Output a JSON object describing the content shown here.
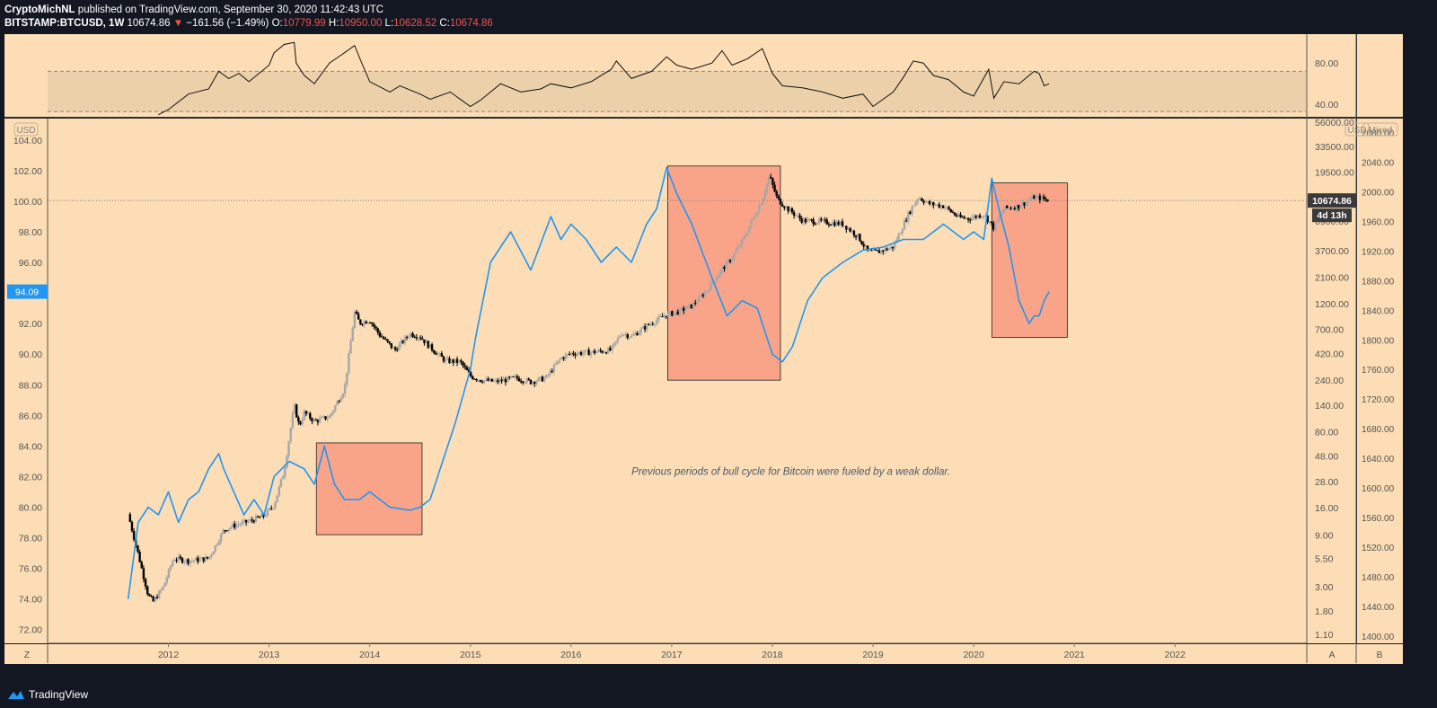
{
  "header": {
    "publisher": "CryptoMichNL",
    "published_text": "published on TradingView.com, September 30, 2020 11:42:43 UTC",
    "symbol": "BITSTAMP:BTCUSD, 1W",
    "price": "10674.86",
    "change_arrow": "▼",
    "change": "−161.56 (−1.49%)",
    "o_label": "O:",
    "o_value": "10779.99",
    "h_label": "H:",
    "h_value": "10950.00",
    "l_label": "L:",
    "l_value": "10628.52",
    "c_label": "C:",
    "c_value": "10674.86"
  },
  "colors": {
    "background": "#131722",
    "chart_bg": "#fcddb5",
    "rsi_band": "#ecd0aa",
    "dxy_line": "#2196f3",
    "highlight": "#f9a488",
    "candle_up": "#a7a7a7",
    "candle_down": "#000000"
  },
  "footer": {
    "brand": "TradingView"
  },
  "chart_data": [
    {
      "type": "line",
      "name": "rsi-pane",
      "y_ticks": [
        "80.00",
        "40.00"
      ],
      "y_tick_values": [
        80,
        40
      ],
      "ylim": [
        28,
        108
      ],
      "band": [
        33,
        72
      ],
      "x": [
        2011.9,
        2012.0,
        2012.2,
        2012.4,
        2012.5,
        2012.6,
        2012.7,
        2012.8,
        2013.0,
        2013.05,
        2013.15,
        2013.25,
        2013.27,
        2013.35,
        2013.45,
        2013.6,
        2013.75,
        2013.85,
        2013.9,
        2014.0,
        2014.2,
        2014.3,
        2014.5,
        2014.6,
        2014.8,
        2015.0,
        2015.1,
        2015.3,
        2015.5,
        2015.7,
        2015.8,
        2016.0,
        2016.2,
        2016.4,
        2016.45,
        2016.6,
        2016.8,
        2016.95,
        2017.05,
        2017.2,
        2017.4,
        2017.5,
        2017.6,
        2017.75,
        2017.9,
        2018.0,
        2018.1,
        2018.3,
        2018.5,
        2018.7,
        2018.9,
        2019.0,
        2019.2,
        2019.3,
        2019.4,
        2019.5,
        2019.6,
        2019.75,
        2019.9,
        2020.0,
        2020.15,
        2020.2,
        2020.3,
        2020.45,
        2020.6,
        2020.65,
        2020.7,
        2020.75
      ],
      "values": [
        30,
        35,
        50,
        55,
        72,
        65,
        70,
        62,
        78,
        90,
        98,
        100,
        80,
        68,
        60,
        80,
        90,
        97,
        85,
        62,
        52,
        58,
        50,
        45,
        52,
        38,
        44,
        60,
        52,
        55,
        60,
        56,
        62,
        74,
        82,
        65,
        72,
        86,
        78,
        74,
        80,
        92,
        78,
        84,
        94,
        70,
        58,
        56,
        52,
        46,
        50,
        38,
        52,
        66,
        82,
        80,
        68,
        64,
        52,
        48,
        74,
        46,
        62,
        60,
        72,
        70,
        58,
        60
      ]
    },
    {
      "type": "line",
      "name": "main-pane",
      "series": [
        {
          "key": "dxy",
          "axis": "left",
          "x": [
            2011.6,
            2011.65,
            2011.7,
            2011.8,
            2011.9,
            2012.0,
            2012.1,
            2012.2,
            2012.3,
            2012.4,
            2012.5,
            2012.55,
            2012.65,
            2012.75,
            2012.85,
            2012.95,
            2013.05,
            2013.2,
            2013.35,
            2013.45,
            2013.55,
            2013.65,
            2013.75,
            2013.9,
            2014.0,
            2014.2,
            2014.4,
            2014.5,
            2014.6,
            2014.7,
            2014.85,
            2015.0,
            2015.05,
            2015.2,
            2015.4,
            2015.6,
            2015.8,
            2015.9,
            2016.0,
            2016.15,
            2016.3,
            2016.45,
            2016.6,
            2016.75,
            2016.85,
            2016.95,
            2017.05,
            2017.2,
            2017.4,
            2017.55,
            2017.7,
            2017.85,
            2018.0,
            2018.1,
            2018.2,
            2018.35,
            2018.5,
            2018.7,
            2018.9,
            2019.1,
            2019.3,
            2019.5,
            2019.7,
            2019.9,
            2020.0,
            2020.1,
            2020.18,
            2020.25,
            2020.35,
            2020.45,
            2020.55,
            2020.6,
            2020.65,
            2020.7,
            2020.75
          ],
          "values": [
            74.0,
            76.5,
            79.0,
            80.0,
            79.5,
            81.0,
            79.0,
            80.5,
            81.0,
            82.5,
            83.5,
            82.5,
            81.0,
            79.5,
            80.5,
            79.5,
            82.0,
            83.0,
            82.5,
            81.5,
            84.0,
            81.5,
            80.5,
            80.5,
            81.0,
            80.0,
            79.8,
            80.0,
            80.5,
            82.5,
            85.5,
            89.0,
            91.0,
            96.0,
            98.0,
            95.5,
            99.0,
            97.5,
            98.5,
            97.5,
            96.0,
            97.0,
            96.0,
            98.5,
            99.5,
            102.2,
            100.5,
            98.5,
            95.0,
            92.5,
            93.5,
            93.0,
            90.0,
            89.5,
            90.5,
            93.5,
            95.0,
            96.0,
            96.8,
            97.0,
            97.5,
            97.5,
            98.5,
            97.5,
            98.0,
            97.5,
            101.5,
            99.5,
            97.0,
            93.5,
            92.0,
            92.5,
            92.5,
            93.5,
            94.09
          ]
        },
        {
          "key": "btc",
          "axis": "right-log",
          "x": [
            2011.6,
            2011.7,
            2011.8,
            2011.85,
            2011.95,
            2012.05,
            2012.2,
            2012.4,
            2012.55,
            2012.65,
            2012.8,
            2012.95,
            2013.05,
            2013.15,
            2013.25,
            2013.3,
            2013.35,
            2013.45,
            2013.6,
            2013.75,
            2013.85,
            2013.9,
            2014.0,
            2014.1,
            2014.25,
            2014.4,
            2014.5,
            2014.6,
            2014.75,
            2014.9,
            2015.0,
            2015.1,
            2015.25,
            2015.45,
            2015.6,
            2015.75,
            2015.9,
            2016.0,
            2016.2,
            2016.4,
            2016.5,
            2016.6,
            2016.75,
            2016.95,
            2017.05,
            2017.2,
            2017.35,
            2017.5,
            2017.6,
            2017.7,
            2017.8,
            2017.9,
            2017.97,
            2018.05,
            2018.15,
            2018.3,
            2018.5,
            2018.7,
            2018.85,
            2018.95,
            2019.05,
            2019.2,
            2019.35,
            2019.45,
            2019.55,
            2019.7,
            2019.85,
            2019.95,
            2020.1,
            2020.2,
            2020.3,
            2020.45,
            2020.6,
            2020.7,
            2020.75
          ],
          "values": [
            14,
            6,
            2.5,
            2.2,
            3.0,
            5.5,
            5.2,
            5.5,
            10,
            11,
            12,
            13.5,
            17,
            35,
            140,
            90,
            120,
            100,
            110,
            200,
            1000,
            800,
            850,
            620,
            450,
            640,
            600,
            480,
            360,
            350,
            260,
            240,
            230,
            250,
            230,
            250,
            380,
            420,
            430,
            450,
            650,
            600,
            750,
            960,
            1000,
            1150,
            1600,
            2500,
            3200,
            4500,
            7000,
            11000,
            18000,
            11000,
            9000,
            7000,
            6800,
            6500,
            5000,
            3600,
            3600,
            4000,
            8000,
            11500,
            10000,
            9500,
            7500,
            7300,
            8000,
            6000,
            9000,
            9500,
            11500,
            11000,
            10674.86
          ]
        }
      ],
      "y_left_ticks": [
        "104.00",
        "102.00",
        "100.00",
        "98.00",
        "96.00",
        "94.00",
        "92.00",
        "90.00",
        "88.00",
        "86.00",
        "84.00",
        "82.00",
        "80.00",
        "78.00",
        "76.00",
        "74.00",
        "72.00"
      ],
      "y_left_values": [
        104,
        102,
        100,
        98,
        96,
        94,
        92,
        90,
        88,
        86,
        84,
        82,
        80,
        78,
        76,
        74,
        72
      ],
      "ylim_left": [
        71.1,
        105.4
      ],
      "y_right_ticks": [
        "56000.00",
        "33500.00",
        "19500.00",
        "11500.00",
        "6900.00",
        "3700.00",
        "2100.00",
        "1200.00",
        "700.00",
        "420.00",
        "240.00",
        "140.00",
        "80.00",
        "48.00",
        "28.00",
        "16.00",
        "9.00",
        "5.50",
        "3.00",
        "1.80",
        "1.10"
      ],
      "y_right_values": [
        56000,
        33500,
        19500,
        11500,
        6900,
        3700,
        2100,
        1200,
        700,
        420,
        240,
        140,
        80,
        48,
        28,
        16,
        9,
        5.5,
        3.0,
        1.8,
        1.1
      ],
      "y_mixed_ticks": [
        "2080.00",
        "2040.00",
        "2000.00",
        "1960.00",
        "1920.00",
        "1880.00",
        "1840.00",
        "1800.00",
        "1760.00",
        "1720.00",
        "1680.00",
        "1640.00",
        "1600.00",
        "1560.00",
        "1520.00",
        "1480.00",
        "1440.00",
        "1400.00"
      ],
      "y_mixed_values": [
        2080,
        2040,
        2000,
        1960,
        1920,
        1880,
        1840,
        1800,
        1760,
        1720,
        1680,
        1640,
        1600,
        1560,
        1520,
        1480,
        1440,
        1400
      ],
      "ylim_mixed": [
        1390,
        2099
      ],
      "x_ticks": [
        "2012",
        "2013",
        "2014",
        "2015",
        "2016",
        "2017",
        "2018",
        "2019",
        "2020",
        "2021",
        "2022"
      ],
      "x_tick_values": [
        2012,
        2013,
        2014,
        2015,
        2016,
        2017,
        2018,
        2019,
        2020,
        2021,
        2022
      ],
      "xlim": [
        2010.8,
        2023.3
      ],
      "left_unit_label": "USD",
      "right_unit_label": "USD",
      "mixed_label": "Mixed",
      "current_dxy_label": "94.09",
      "current_btc_label": "10674.86",
      "countdown_label": "4d 13h",
      "current_price_line": 10674.86,
      "annotation": "Previous periods of bull cycle for Bitcoin were fueled by a weak dollar.",
      "annotation_pos": [
        2016.6,
        82.1
      ],
      "boxes": [
        {
          "x0": 2013.47,
          "x1": 2014.52,
          "y0": 78.2,
          "y1": 84.2
        },
        {
          "x0": 2016.96,
          "x1": 2018.08,
          "y0": 88.3,
          "y1": 102.3
        },
        {
          "x0": 2020.18,
          "x1": 2020.93,
          "y0": 91.1,
          "y1": 101.2
        }
      ],
      "bottom_labels": {
        "left": "Z",
        "a": "A",
        "b": "B"
      }
    }
  ]
}
